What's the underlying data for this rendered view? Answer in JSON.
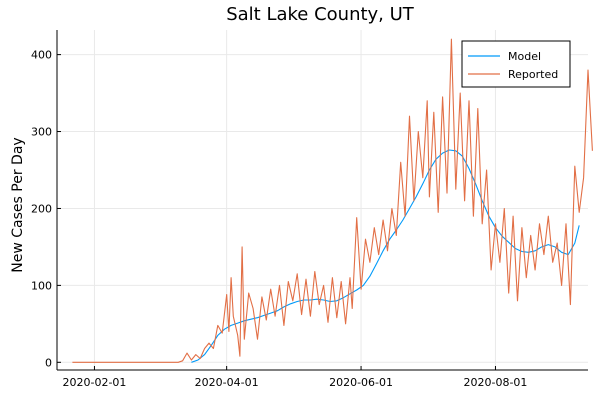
{
  "chart_data": {
    "type": "line",
    "title": "Salt Lake County, UT",
    "xlabel": "",
    "ylabel": "New Cases Per Day",
    "x_ticks": [
      "2020-02-01",
      "2020-04-01",
      "2020-06-01",
      "2020-08-01"
    ],
    "y_ticks": [
      0,
      100,
      200,
      300,
      400
    ],
    "xlim": [
      "2020-01-15",
      "2020-09-12"
    ],
    "ylim": [
      -10,
      432
    ],
    "grid": true,
    "legend": "top-right",
    "series": [
      {
        "name": "Model",
        "color": "#009af9",
        "points": [
          [
            "2020-03-16",
            0
          ],
          [
            "2020-03-19",
            3
          ],
          [
            "2020-03-22",
            10
          ],
          [
            "2020-03-25",
            22
          ],
          [
            "2020-03-28",
            35
          ],
          [
            "2020-03-31",
            43
          ],
          [
            "2020-04-03",
            48
          ],
          [
            "2020-04-06",
            51
          ],
          [
            "2020-04-09",
            54
          ],
          [
            "2020-04-12",
            56
          ],
          [
            "2020-04-15",
            58
          ],
          [
            "2020-04-18",
            61
          ],
          [
            "2020-04-21",
            64
          ],
          [
            "2020-04-24",
            67
          ],
          [
            "2020-04-27",
            72
          ],
          [
            "2020-04-30",
            76
          ],
          [
            "2020-05-03",
            79
          ],
          [
            "2020-05-06",
            81
          ],
          [
            "2020-05-09",
            81
          ],
          [
            "2020-05-12",
            82
          ],
          [
            "2020-05-15",
            81
          ],
          [
            "2020-05-18",
            79
          ],
          [
            "2020-05-21",
            80
          ],
          [
            "2020-05-24",
            84
          ],
          [
            "2020-05-27",
            89
          ],
          [
            "2020-05-30",
            94
          ],
          [
            "2020-06-02",
            100
          ],
          [
            "2020-06-05",
            112
          ],
          [
            "2020-06-08",
            128
          ],
          [
            "2020-06-11",
            145
          ],
          [
            "2020-06-14",
            160
          ],
          [
            "2020-06-17",
            172
          ],
          [
            "2020-06-20",
            185
          ],
          [
            "2020-06-23",
            200
          ],
          [
            "2020-06-26",
            215
          ],
          [
            "2020-06-29",
            232
          ],
          [
            "2020-07-02",
            250
          ],
          [
            "2020-07-05",
            264
          ],
          [
            "2020-07-08",
            272
          ],
          [
            "2020-07-11",
            276
          ],
          [
            "2020-07-14",
            275
          ],
          [
            "2020-07-17",
            268
          ],
          [
            "2020-07-20",
            252
          ],
          [
            "2020-07-23",
            232
          ],
          [
            "2020-07-26",
            210
          ],
          [
            "2020-07-29",
            190
          ],
          [
            "2020-08-01",
            175
          ],
          [
            "2020-08-04",
            164
          ],
          [
            "2020-08-07",
            156
          ],
          [
            "2020-08-10",
            148
          ],
          [
            "2020-08-13",
            144
          ],
          [
            "2020-08-16",
            143
          ],
          [
            "2020-08-19",
            145
          ],
          [
            "2020-08-22",
            150
          ],
          [
            "2020-08-25",
            153
          ],
          [
            "2020-08-28",
            150
          ],
          [
            "2020-08-31",
            143
          ],
          [
            "2020-09-03",
            140
          ],
          [
            "2020-09-06",
            155
          ],
          [
            "2020-09-08",
            178
          ]
        ]
      },
      {
        "name": "Reported",
        "color": "#e26f46",
        "points": [
          [
            "2020-01-22",
            0
          ],
          [
            "2020-03-10",
            0
          ],
          [
            "2020-03-12",
            2
          ],
          [
            "2020-03-14",
            12
          ],
          [
            "2020-03-16",
            3
          ],
          [
            "2020-03-18",
            10
          ],
          [
            "2020-03-20",
            5
          ],
          [
            "2020-03-22",
            18
          ],
          [
            "2020-03-24",
            25
          ],
          [
            "2020-03-26",
            18
          ],
          [
            "2020-03-28",
            48
          ],
          [
            "2020-03-30",
            38
          ],
          [
            "2020-04-01",
            88
          ],
          [
            "2020-04-02",
            40
          ],
          [
            "2020-04-03",
            110
          ],
          [
            "2020-04-04",
            60
          ],
          [
            "2020-04-06",
            35
          ],
          [
            "2020-04-07",
            8
          ],
          [
            "2020-04-08",
            150
          ],
          [
            "2020-04-09",
            30
          ],
          [
            "2020-04-11",
            90
          ],
          [
            "2020-04-13",
            70
          ],
          [
            "2020-04-15",
            30
          ],
          [
            "2020-04-17",
            85
          ],
          [
            "2020-04-19",
            55
          ],
          [
            "2020-04-21",
            95
          ],
          [
            "2020-04-23",
            60
          ],
          [
            "2020-04-25",
            100
          ],
          [
            "2020-04-27",
            48
          ],
          [
            "2020-04-29",
            105
          ],
          [
            "2020-05-01",
            80
          ],
          [
            "2020-05-03",
            115
          ],
          [
            "2020-05-05",
            62
          ],
          [
            "2020-05-07",
            108
          ],
          [
            "2020-05-09",
            60
          ],
          [
            "2020-05-11",
            118
          ],
          [
            "2020-05-13",
            75
          ],
          [
            "2020-05-15",
            100
          ],
          [
            "2020-05-17",
            52
          ],
          [
            "2020-05-19",
            110
          ],
          [
            "2020-05-21",
            58
          ],
          [
            "2020-05-23",
            105
          ],
          [
            "2020-05-25",
            50
          ],
          [
            "2020-05-27",
            110
          ],
          [
            "2020-05-28",
            70
          ],
          [
            "2020-05-30",
            188
          ],
          [
            "2020-06-01",
            95
          ],
          [
            "2020-06-03",
            160
          ],
          [
            "2020-06-05",
            130
          ],
          [
            "2020-06-07",
            175
          ],
          [
            "2020-06-09",
            140
          ],
          [
            "2020-06-11",
            185
          ],
          [
            "2020-06-13",
            145
          ],
          [
            "2020-06-15",
            200
          ],
          [
            "2020-06-17",
            165
          ],
          [
            "2020-06-19",
            260
          ],
          [
            "2020-06-21",
            190
          ],
          [
            "2020-06-23",
            320
          ],
          [
            "2020-06-25",
            210
          ],
          [
            "2020-06-27",
            300
          ],
          [
            "2020-06-29",
            240
          ],
          [
            "2020-07-01",
            340
          ],
          [
            "2020-07-02",
            215
          ],
          [
            "2020-07-04",
            325
          ],
          [
            "2020-07-06",
            195
          ],
          [
            "2020-07-08",
            345
          ],
          [
            "2020-07-10",
            220
          ],
          [
            "2020-07-12",
            420
          ],
          [
            "2020-07-14",
            225
          ],
          [
            "2020-07-16",
            350
          ],
          [
            "2020-07-18",
            210
          ],
          [
            "2020-07-20",
            340
          ],
          [
            "2020-07-22",
            190
          ],
          [
            "2020-07-24",
            330
          ],
          [
            "2020-07-26",
            180
          ],
          [
            "2020-07-28",
            250
          ],
          [
            "2020-07-30",
            120
          ],
          [
            "2020-08-01",
            180
          ],
          [
            "2020-08-03",
            130
          ],
          [
            "2020-08-05",
            200
          ],
          [
            "2020-08-07",
            90
          ],
          [
            "2020-08-09",
            190
          ],
          [
            "2020-08-11",
            80
          ],
          [
            "2020-08-13",
            175
          ],
          [
            "2020-08-15",
            110
          ],
          [
            "2020-08-17",
            165
          ],
          [
            "2020-08-19",
            120
          ],
          [
            "2020-08-21",
            180
          ],
          [
            "2020-08-23",
            140
          ],
          [
            "2020-08-25",
            190
          ],
          [
            "2020-08-27",
            130
          ],
          [
            "2020-08-29",
            155
          ],
          [
            "2020-08-31",
            100
          ],
          [
            "2020-09-02",
            180
          ],
          [
            "2020-09-04",
            75
          ],
          [
            "2020-09-06",
            255
          ],
          [
            "2020-09-08",
            195
          ],
          [
            "2020-09-10",
            240
          ],
          [
            "2020-09-12",
            380
          ],
          [
            "2020-09-14",
            275
          ]
        ]
      }
    ]
  }
}
